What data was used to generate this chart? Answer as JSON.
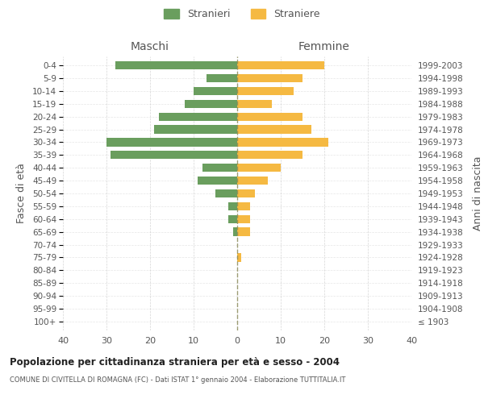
{
  "age_groups": [
    "100+",
    "95-99",
    "90-94",
    "85-89",
    "80-84",
    "75-79",
    "70-74",
    "65-69",
    "60-64",
    "55-59",
    "50-54",
    "45-49",
    "40-44",
    "35-39",
    "30-34",
    "25-29",
    "20-24",
    "15-19",
    "10-14",
    "5-9",
    "0-4"
  ],
  "birth_years": [
    "≤ 1903",
    "1904-1908",
    "1909-1913",
    "1914-1918",
    "1919-1923",
    "1924-1928",
    "1929-1933",
    "1934-1938",
    "1939-1943",
    "1944-1948",
    "1949-1953",
    "1954-1958",
    "1959-1963",
    "1964-1968",
    "1969-1973",
    "1974-1978",
    "1979-1983",
    "1984-1988",
    "1989-1993",
    "1994-1998",
    "1999-2003"
  ],
  "maschi": [
    0,
    0,
    0,
    0,
    0,
    0,
    0,
    1,
    2,
    2,
    5,
    9,
    8,
    29,
    30,
    19,
    18,
    12,
    10,
    7,
    28
  ],
  "femmine": [
    0,
    0,
    0,
    0,
    0,
    1,
    0,
    3,
    3,
    3,
    4,
    7,
    10,
    15,
    21,
    17,
    15,
    8,
    13,
    15,
    20
  ],
  "color_maschi": "#6a9e5e",
  "color_femmine": "#f5b942",
  "xlim": 40,
  "title_main": "Popolazione per cittadinanza straniera per età e sesso - 2004",
  "title_sub": "COMUNE DI CIVITELLA DI ROMAGNA (FC) - Dati ISTAT 1° gennaio 2004 - Elaborazione TUTTITALIA.IT",
  "xlabel_maschi": "Maschi",
  "xlabel_femmine": "Femmine",
  "ylabel_left": "Fasce di età",
  "ylabel_right": "Anni di nascita",
  "legend_maschi": "Stranieri",
  "legend_femmine": "Straniere",
  "bg_color": "#ffffff",
  "grid_color": "#cccccc",
  "tick_color": "#888888",
  "label_color": "#555555"
}
